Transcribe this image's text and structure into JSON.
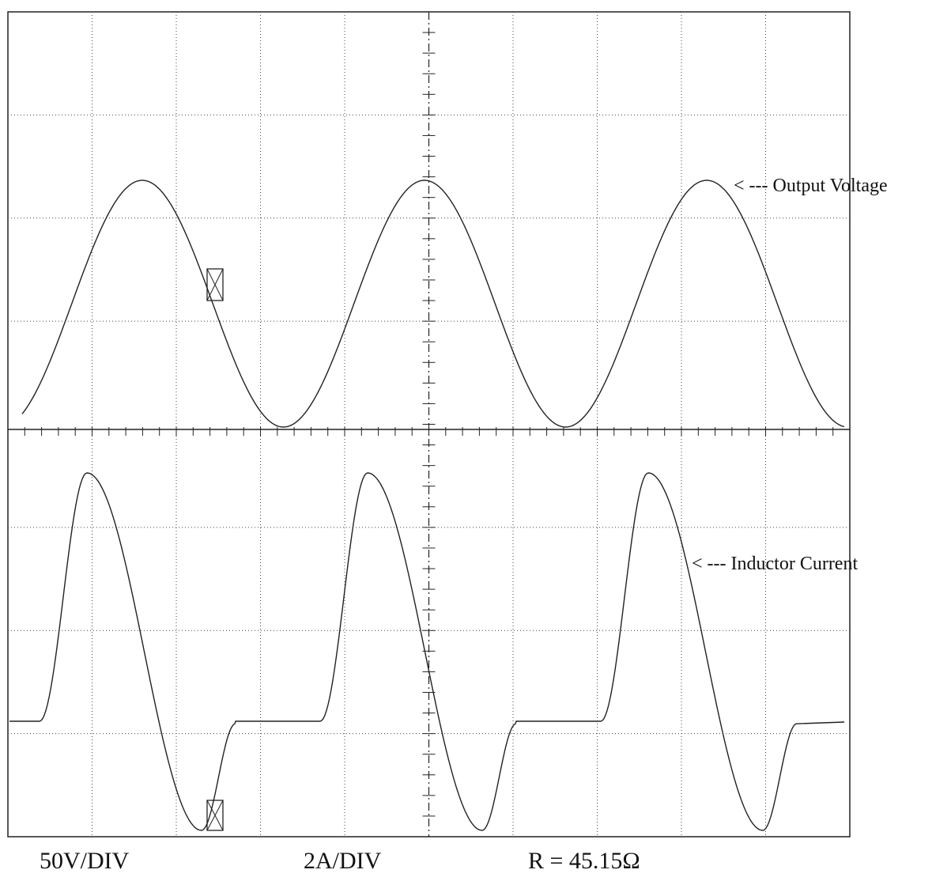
{
  "annotations": {
    "output_voltage": "< --- Output Voltage",
    "inductor_current": "< --- Inductor Current"
  },
  "footer": {
    "voltage_scale": "50V/DIV",
    "current_scale": "2A/DIV",
    "resistance": "R = 45.15Ω"
  }
}
